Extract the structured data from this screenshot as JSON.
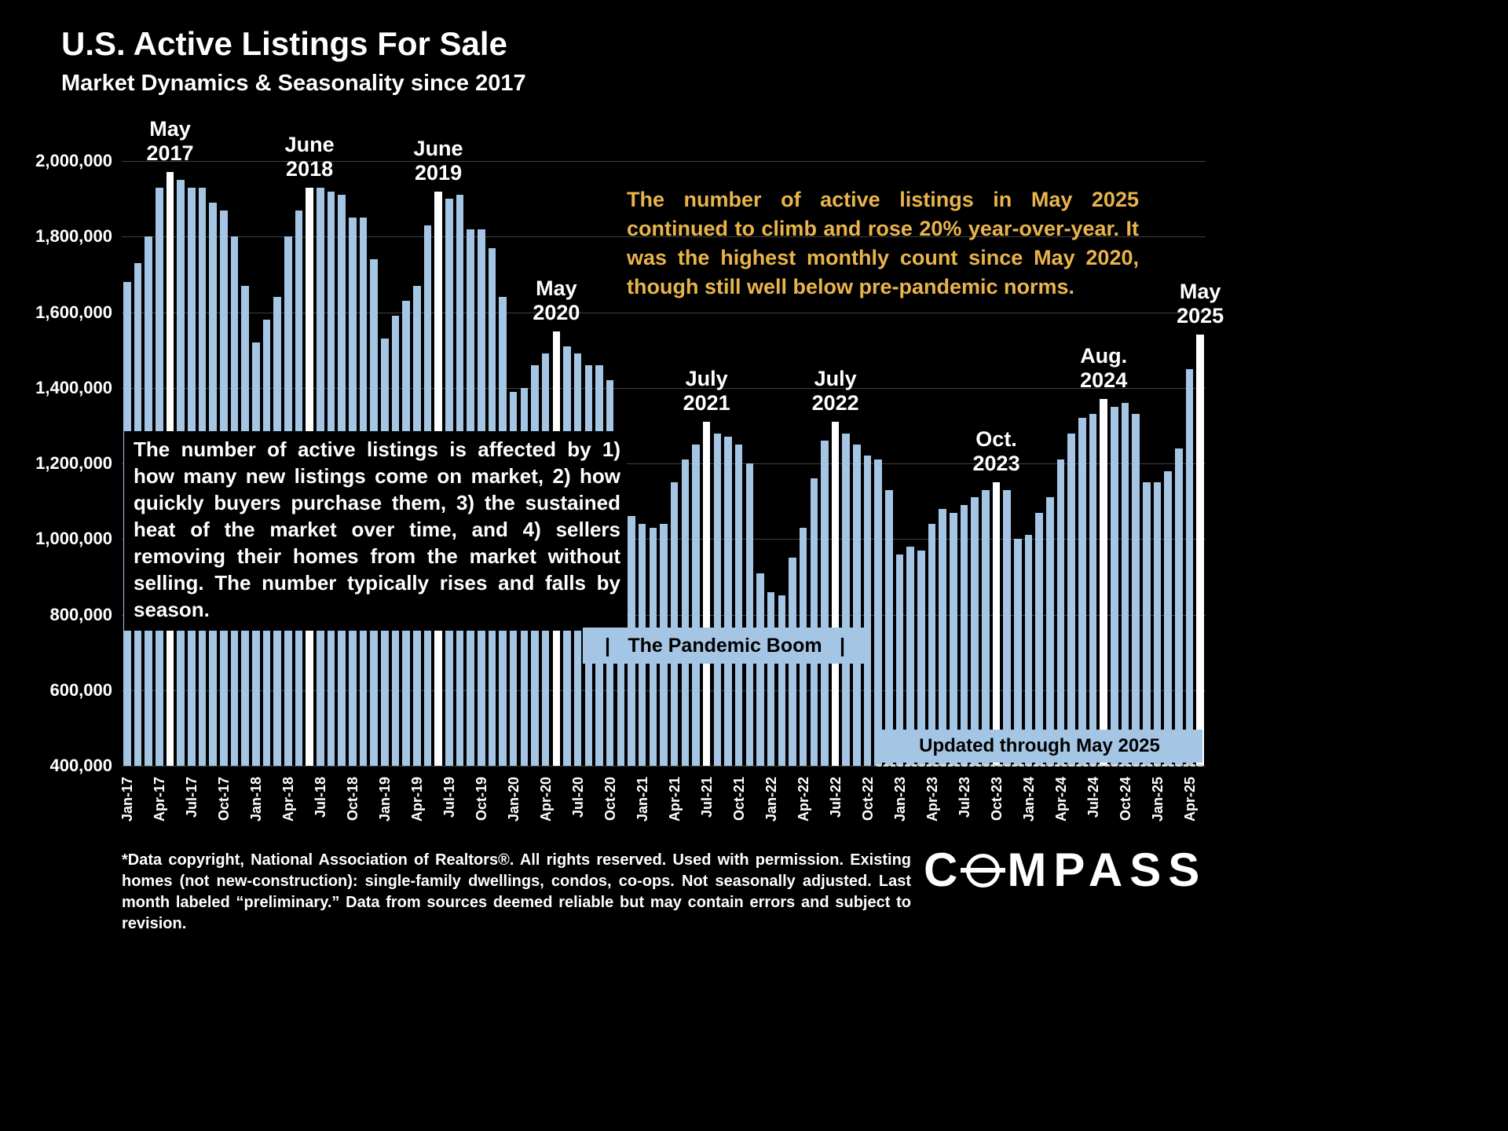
{
  "page": {
    "title": "U.S. Active Listings For Sale",
    "subtitle": "Market Dynamics & Seasonality since 2017"
  },
  "callouts": {
    "highlight_note": "The number of active listings in May 2025 continued to climb and rose 20% year-over-year. It was the highest monthly count since May 2020, though still well below pre-pandemic norms.",
    "explainer_note": "The number of active listings is affected by 1) how many new listings come on market, 2) how quickly buyers purchase them, 3) the sustained heat of the market over time, and 4) sellers removing their homes from the market without selling. The number typically rises and falls by season.",
    "pandemic_boom_label": "The Pandemic Boom",
    "ribbon_bar": "|",
    "updated_label": "Updated through May 2025"
  },
  "footer": {
    "disclaimer": "*Data copyright, National Association of Realtors®. All rights reserved. Used with permission. Existing homes (not new-construction): single-family dwellings, condos, co-ops. Not seasonally adjusted. Last month labeled “preliminary.” Data from sources deemed reliable but may contain errors and subject to revision.",
    "logo_text": "COMPASS"
  },
  "chart_data": {
    "type": "bar",
    "title": "U.S. Active Listings For Sale",
    "xlabel": "",
    "ylabel": "Active listings (count)",
    "ylim": [
      400000,
      2000000
    ],
    "grid": true,
    "background": "#000000",
    "bar_color": "#A5C5E5",
    "highlight_color": "#FFFFFF",
    "accent_text_color": "#E9B44C",
    "x_tick_every": 3,
    "yticks": [
      {
        "value": 2000000,
        "label": "2,000,000"
      },
      {
        "value": 1800000,
        "label": "1,800,000"
      },
      {
        "value": 1600000,
        "label": "1,600,000"
      },
      {
        "value": 1400000,
        "label": "1,400,000"
      },
      {
        "value": 1200000,
        "label": "1,200,000"
      },
      {
        "value": 1000000,
        "label": "1,000,000"
      },
      {
        "value": 800000,
        "label": "800,000"
      },
      {
        "value": 600000,
        "label": "600,000"
      },
      {
        "value": 400000,
        "label": "400,000"
      }
    ],
    "categories": [
      "Jan-17",
      "Feb-17",
      "Mar-17",
      "Apr-17",
      "May-17",
      "Jun-17",
      "Jul-17",
      "Aug-17",
      "Sep-17",
      "Oct-17",
      "Nov-17",
      "Dec-17",
      "Jan-18",
      "Feb-18",
      "Mar-18",
      "Apr-18",
      "May-18",
      "Jun-18",
      "Jul-18",
      "Aug-18",
      "Sep-18",
      "Oct-18",
      "Nov-18",
      "Dec-18",
      "Jan-19",
      "Feb-19",
      "Mar-19",
      "Apr-19",
      "May-19",
      "Jun-19",
      "Jul-19",
      "Aug-19",
      "Sep-19",
      "Oct-19",
      "Nov-19",
      "Dec-19",
      "Jan-20",
      "Feb-20",
      "Mar-20",
      "Apr-20",
      "May-20",
      "Jun-20",
      "Jul-20",
      "Aug-20",
      "Sep-20",
      "Oct-20",
      "Nov-20",
      "Dec-20",
      "Jan-21",
      "Feb-21",
      "Mar-21",
      "Apr-21",
      "May-21",
      "Jun-21",
      "Jul-21",
      "Aug-21",
      "Sep-21",
      "Oct-21",
      "Nov-21",
      "Dec-21",
      "Jan-22",
      "Feb-22",
      "Mar-22",
      "Apr-22",
      "May-22",
      "Jun-22",
      "Jul-22",
      "Aug-22",
      "Sep-22",
      "Oct-22",
      "Nov-22",
      "Dec-22",
      "Jan-23",
      "Feb-23",
      "Mar-23",
      "Apr-23",
      "May-23",
      "Jun-23",
      "Jul-23",
      "Aug-23",
      "Sep-23",
      "Oct-23",
      "Nov-23",
      "Dec-23",
      "Jan-24",
      "Feb-24",
      "Mar-24",
      "Apr-24",
      "May-24",
      "Jun-24",
      "Jul-24",
      "Aug-24",
      "Sep-24",
      "Oct-24",
      "Nov-24",
      "Dec-24",
      "Jan-25",
      "Feb-25",
      "Mar-25",
      "Apr-25",
      "May-25"
    ],
    "values": [
      1680000,
      1730000,
      1800000,
      1930000,
      1970000,
      1950000,
      1930000,
      1930000,
      1890000,
      1870000,
      1800000,
      1670000,
      1520000,
      1580000,
      1640000,
      1800000,
      1870000,
      1930000,
      1930000,
      1920000,
      1910000,
      1850000,
      1850000,
      1740000,
      1530000,
      1590000,
      1630000,
      1670000,
      1830000,
      1920000,
      1900000,
      1910000,
      1820000,
      1820000,
      1770000,
      1640000,
      1390000,
      1400000,
      1460000,
      1490000,
      1550000,
      1510000,
      1490000,
      1460000,
      1460000,
      1420000,
      1280000,
      1060000,
      1040000,
      1030000,
      1040000,
      1150000,
      1210000,
      1250000,
      1310000,
      1280000,
      1270000,
      1250000,
      1200000,
      910000,
      860000,
      850000,
      950000,
      1030000,
      1160000,
      1260000,
      1310000,
      1280000,
      1250000,
      1220000,
      1210000,
      1130000,
      960000,
      980000,
      970000,
      1040000,
      1080000,
      1070000,
      1090000,
      1110000,
      1130000,
      1150000,
      1130000,
      1000000,
      1010000,
      1070000,
      1110000,
      1210000,
      1280000,
      1320000,
      1330000,
      1370000,
      1350000,
      1360000,
      1330000,
      1150000,
      1150000,
      1180000,
      1240000,
      1450000,
      1540000
    ],
    "highlight_indices": [
      4,
      17,
      29,
      40,
      54,
      66,
      81,
      91,
      100
    ],
    "annotations": [
      {
        "index": 4,
        "lines": [
          "May",
          "2017"
        ]
      },
      {
        "index": 17,
        "lines": [
          "June",
          "2018"
        ]
      },
      {
        "index": 29,
        "lines": [
          "June",
          "2019"
        ]
      },
      {
        "index": 40,
        "lines": [
          "May",
          "2020"
        ]
      },
      {
        "index": 54,
        "lines": [
          "July",
          "2021"
        ]
      },
      {
        "index": 66,
        "lines": [
          "July",
          "2022"
        ]
      },
      {
        "index": 81,
        "lines": [
          "Oct.",
          "2023"
        ]
      },
      {
        "index": 91,
        "lines": [
          "Aug.",
          "2024"
        ]
      },
      {
        "index": 100,
        "lines": [
          "May",
          "2025"
        ]
      }
    ]
  }
}
